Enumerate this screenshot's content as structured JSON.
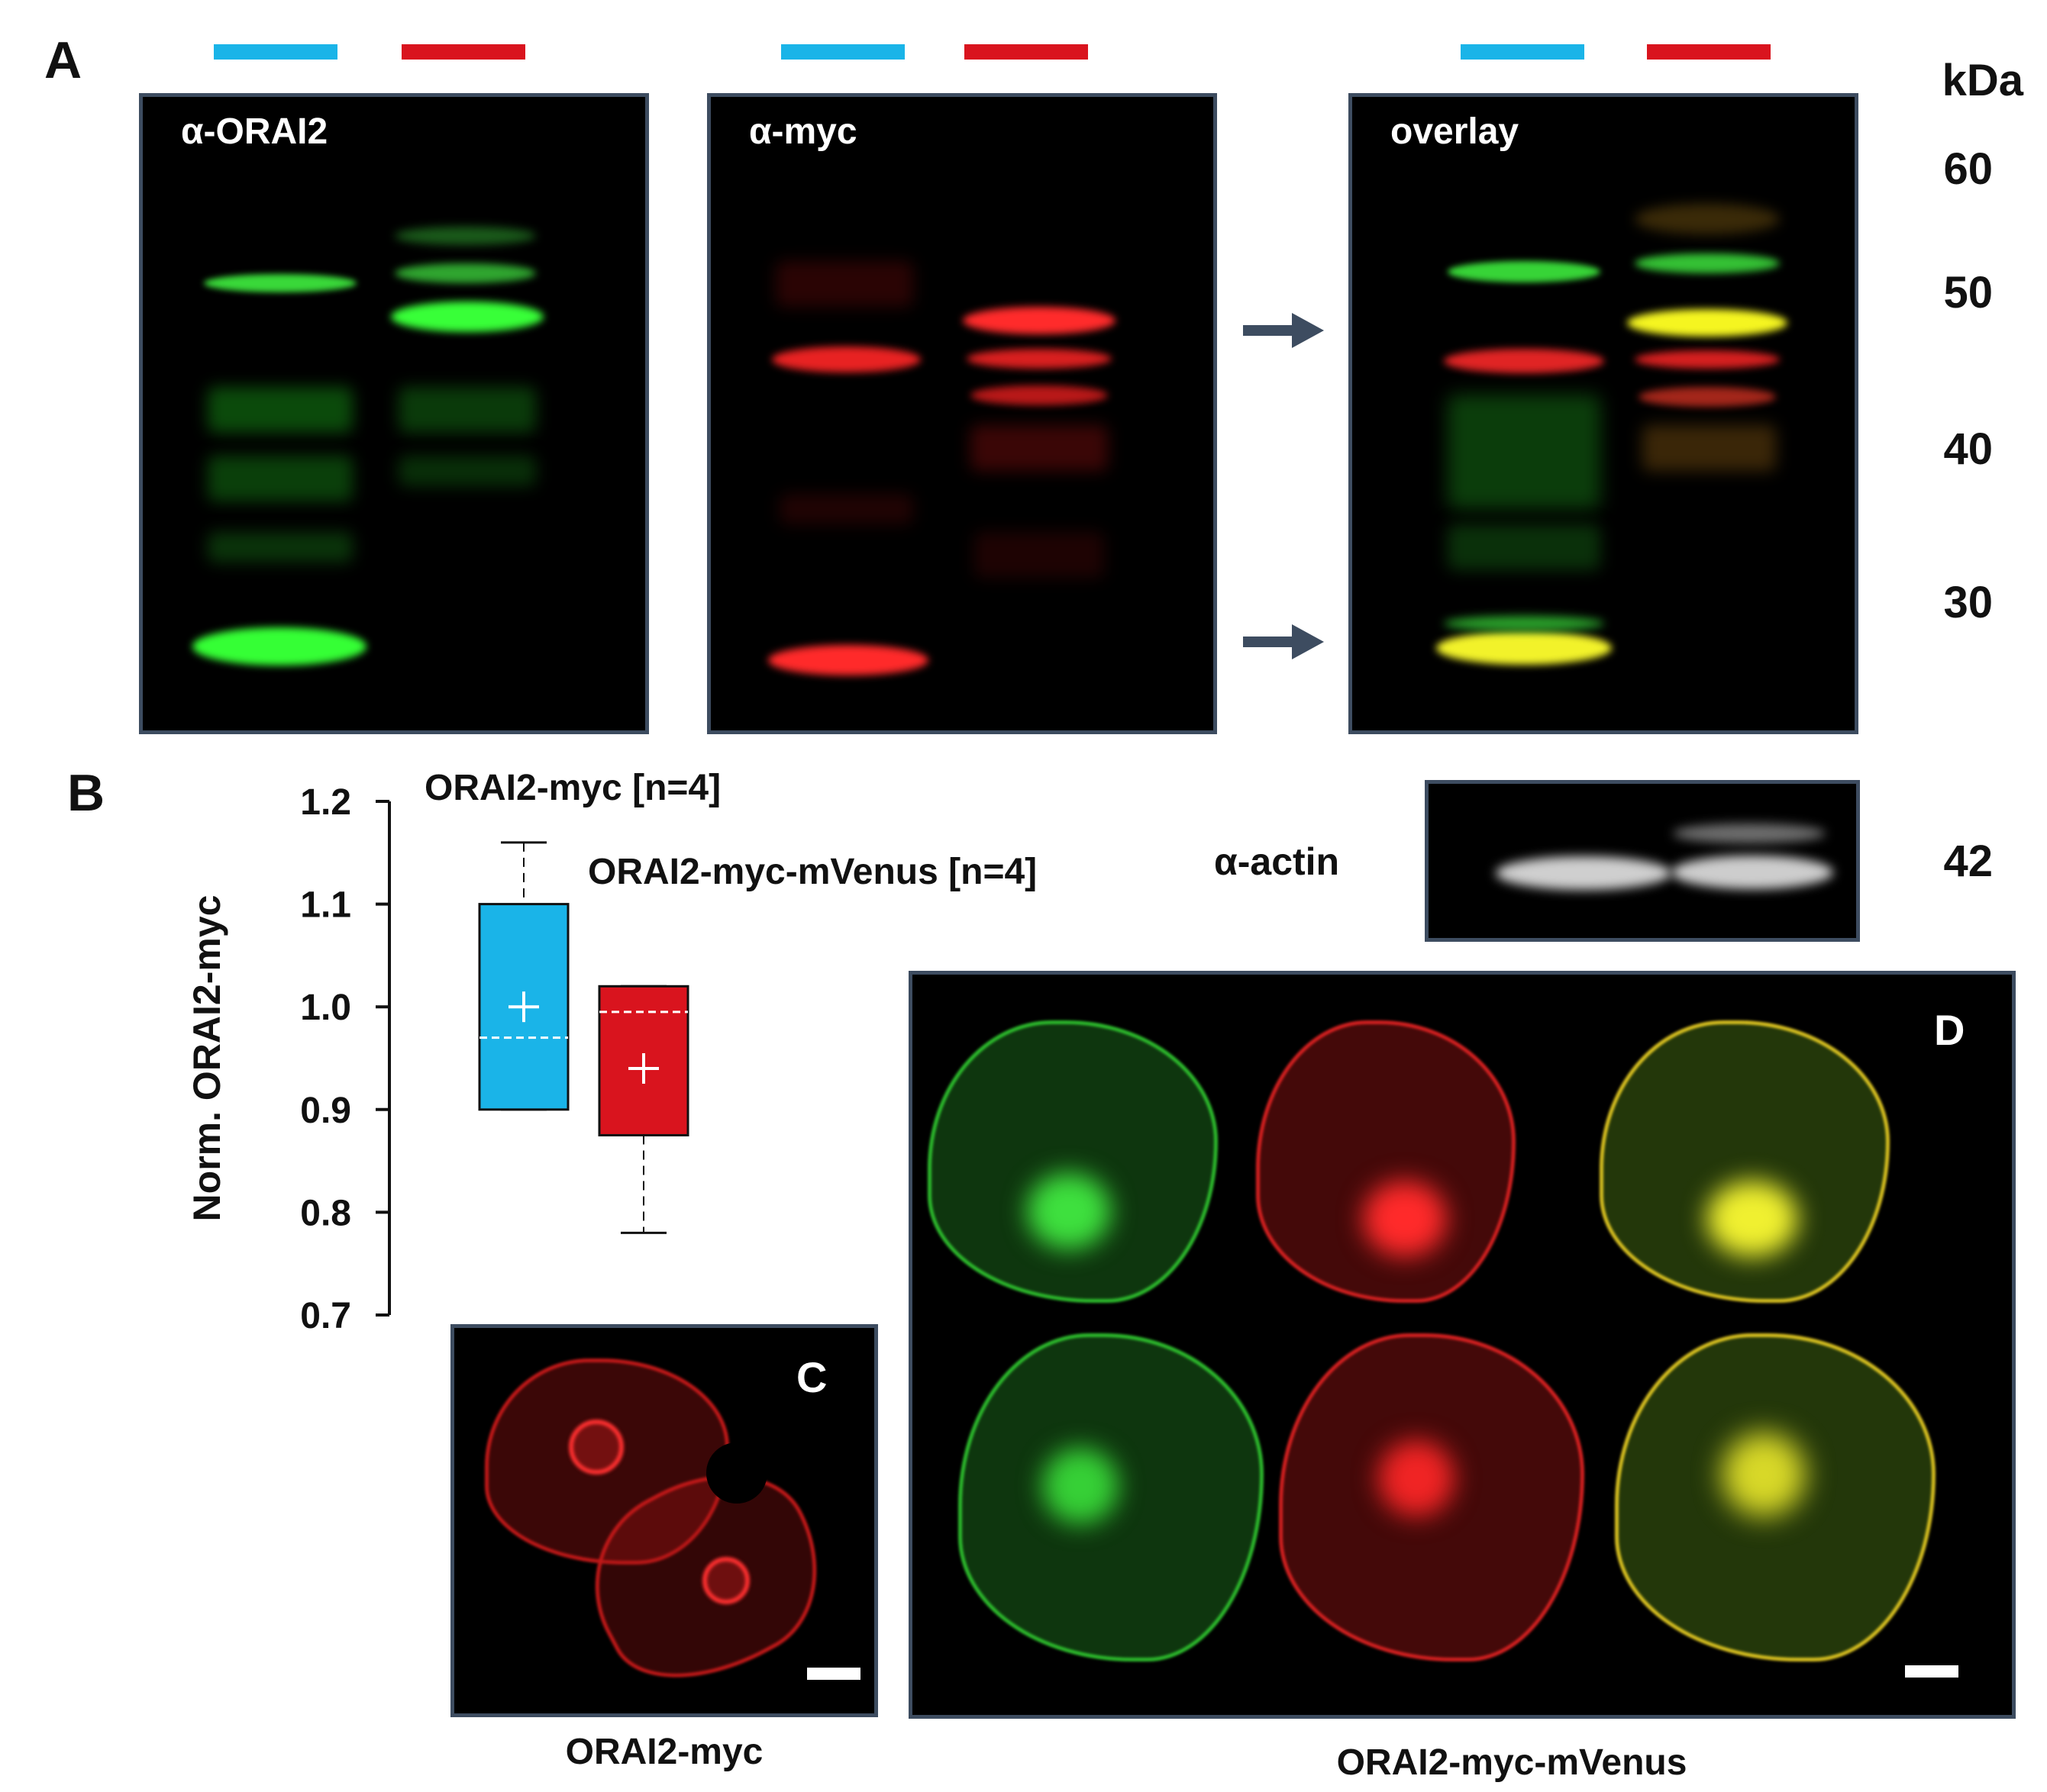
{
  "panels": {
    "a_label": "A",
    "b_label": "B",
    "c_label": "C",
    "d_label": "D"
  },
  "lane_colors": {
    "orai2_myc": "#1ab4e8",
    "orai2_myc_mvenus": "#d9141e"
  },
  "blots": {
    "orai2_title": "α-ORAI2",
    "myc_title": "α-myc",
    "overlay_title": "overlay",
    "actin_label": "α-actin"
  },
  "kda": {
    "unit": "kDa",
    "m60": "60",
    "m50": "50",
    "m40": "40",
    "m30": "30",
    "m42": "42"
  },
  "chart_data": {
    "type": "box",
    "ylabel": "Norm. ORAI2-myc",
    "ylim": [
      0.7,
      1.2
    ],
    "yticks": [
      "0.7",
      "0.8",
      "0.9",
      "1.0",
      "1.1",
      "1.2"
    ],
    "legend_1": "ORAI2-myc [n=4]",
    "legend_2": "ORAI2-myc-mVenus [n=4]",
    "series": [
      {
        "key": "orai2_myc",
        "color": "#1ab4e8",
        "min": 0.9,
        "q1": 0.9,
        "median": 0.97,
        "q3": 1.1,
        "max": 1.16,
        "mean": 1.0
      },
      {
        "key": "orai2_myc_mvenus",
        "color": "#d9141e",
        "min": 0.78,
        "q1": 0.875,
        "median": 0.995,
        "q3": 1.02,
        "max": 1.02,
        "mean": 0.94
      }
    ]
  },
  "captions": {
    "c": "ORAI2-myc",
    "d": "ORAI2-myc-mVenus"
  }
}
